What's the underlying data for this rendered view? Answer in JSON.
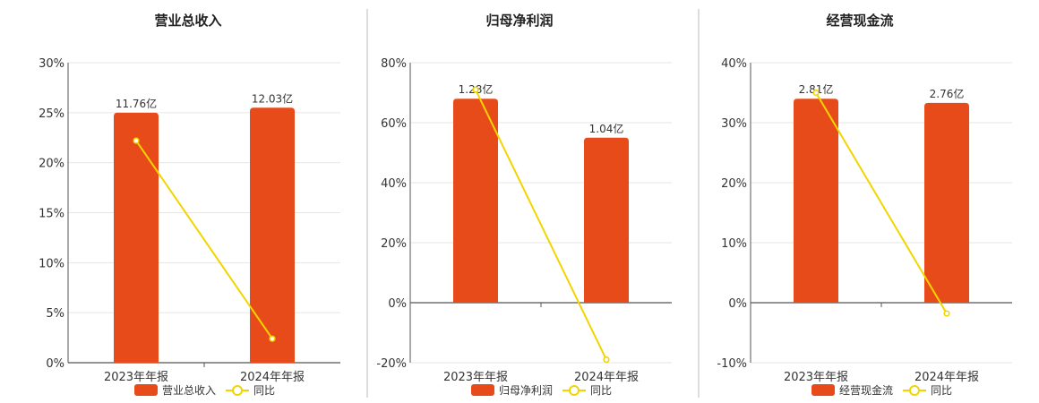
{
  "colors": {
    "bar": "#E84B1A",
    "line": "#F2D500",
    "grid": "#E6E6E6",
    "axis": "#555555",
    "divider": "#BBBBBB"
  },
  "chart_data": [
    {
      "type": "bar",
      "title": "营业总收入",
      "categories": [
        "2023年年报",
        "2024年年报"
      ],
      "ylim": [
        0,
        30
      ],
      "yticks": [
        "0%",
        "5%",
        "10%",
        "15%",
        "20%",
        "25%",
        "30%"
      ],
      "series": [
        {
          "name": "营业总收入",
          "type": "bar",
          "values": [
            25,
            25.5
          ],
          "labels": [
            "11.76亿",
            "12.03亿"
          ]
        },
        {
          "name": "同比",
          "type": "line",
          "values": [
            22.2,
            2.4
          ]
        }
      ],
      "legend": "bottom"
    },
    {
      "type": "bar",
      "title": "归母净利润",
      "categories": [
        "2023年年报",
        "2024年年报"
      ],
      "ylim": [
        -20,
        80
      ],
      "yticks": [
        "-20%",
        "0%",
        "20%",
        "40%",
        "60%",
        "80%"
      ],
      "series": [
        {
          "name": "归母净利润",
          "type": "bar",
          "values": [
            68,
            55
          ],
          "labels": [
            "1.28亿",
            "1.04亿"
          ]
        },
        {
          "name": "同比",
          "type": "line",
          "values": [
            71,
            -19
          ]
        }
      ],
      "legend": "bottom"
    },
    {
      "type": "bar",
      "title": "经营现金流",
      "categories": [
        "2023年年报",
        "2024年年报"
      ],
      "ylim": [
        -10,
        40
      ],
      "yticks": [
        "-10%",
        "0%",
        "10%",
        "20%",
        "30%",
        "40%"
      ],
      "series": [
        {
          "name": "经营现金流",
          "type": "bar",
          "values": [
            34,
            33.3
          ],
          "labels": [
            "2.81亿",
            "2.76亿"
          ]
        },
        {
          "name": "同比",
          "type": "line",
          "values": [
            35,
            -1.8
          ]
        }
      ],
      "legend": "bottom"
    }
  ]
}
